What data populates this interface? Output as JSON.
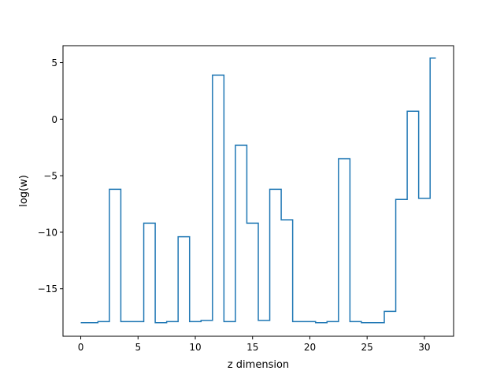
{
  "chart_data": {
    "type": "line",
    "drawstyle": "steps-mid",
    "title": "",
    "xlabel": "z dimension",
    "ylabel": "log(w)",
    "xlim": [
      -1.55,
      32.55
    ],
    "ylim": [
      -19.2,
      6.5
    ],
    "xticks": [
      0,
      5,
      10,
      15,
      20,
      25,
      30
    ],
    "xtick_labels": [
      "0",
      "5",
      "10",
      "15",
      "20",
      "25",
      "30"
    ],
    "yticks": [
      5,
      0,
      -5,
      -10,
      -15
    ],
    "ytick_labels": [
      "5",
      "0",
      "−5",
      "−10",
      "−15"
    ],
    "grid": false,
    "legend": "none",
    "series": [
      {
        "color": "#1f77b4",
        "x": [
          0,
          1,
          2,
          3,
          4,
          5,
          6,
          7,
          8,
          9,
          10,
          11,
          12,
          13,
          14,
          15,
          16,
          17,
          18,
          19,
          20,
          21,
          22,
          23,
          24,
          25,
          26,
          27,
          28,
          29,
          30,
          31
        ],
        "y": [
          -18.0,
          -18.0,
          -17.9,
          -6.2,
          -17.9,
          -17.9,
          -9.2,
          -18.0,
          -17.9,
          -10.4,
          -17.9,
          -17.8,
          3.9,
          -17.9,
          -2.3,
          -9.2,
          -17.8,
          -6.2,
          -8.9,
          -17.9,
          -17.9,
          -18.0,
          -17.9,
          -3.5,
          -17.9,
          -18.0,
          -18.0,
          -17.0,
          -7.1,
          0.7,
          -7.0,
          5.4
        ]
      }
    ]
  }
}
